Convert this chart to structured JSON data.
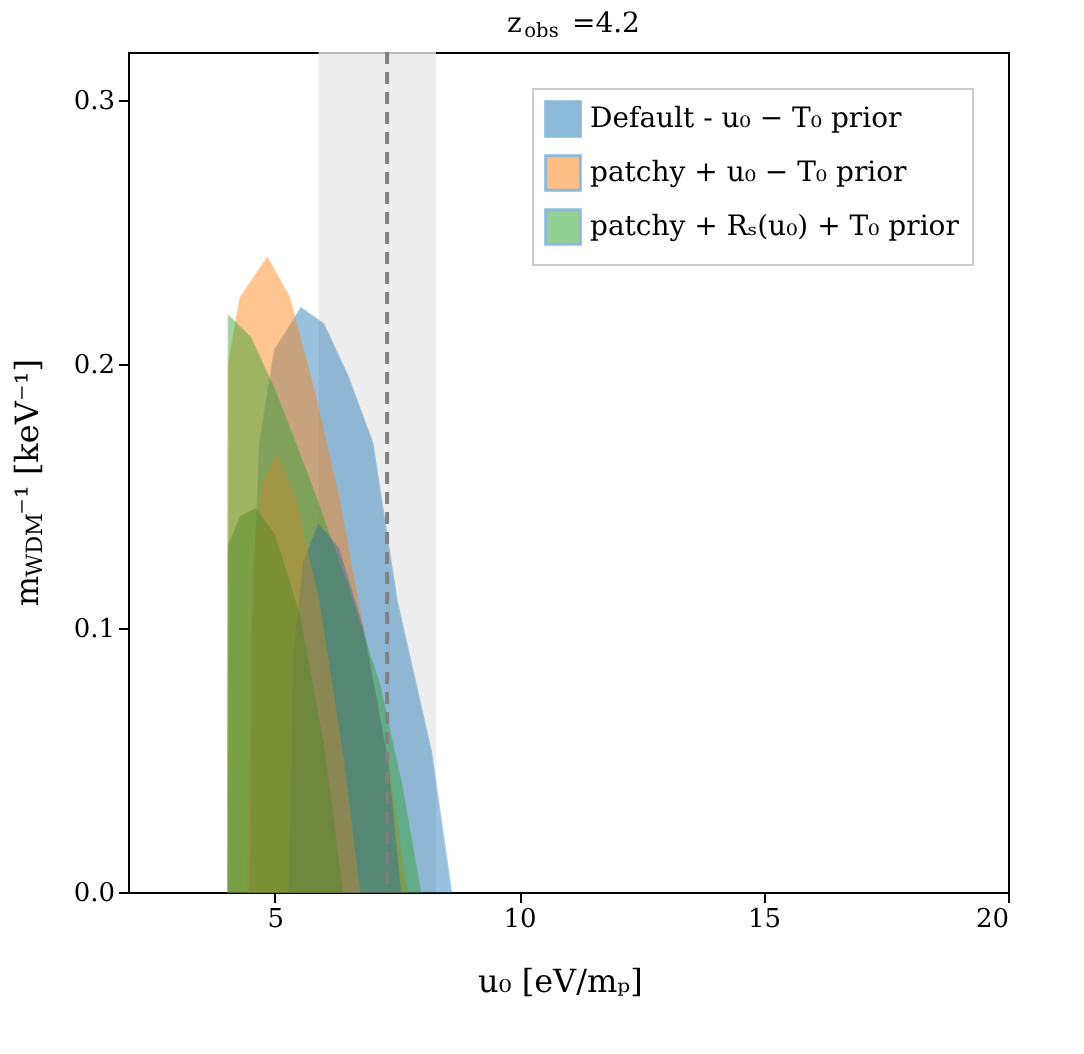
{
  "chart_data": {
    "type": "area",
    "title": "z$_{obs}$ =4.2",
    "xlabel": "u₀ [eV/mₚ]",
    "ylabel": "m$_{WDM}$⁻¹ [keV⁻¹]",
    "xlim": [
      2,
      20
    ],
    "xticks": [
      5,
      10,
      15,
      20
    ],
    "ylim": [
      0,
      0.318
    ],
    "yticks": [
      {
        "value": 0,
        "label": "0.0"
      },
      0.1,
      0.2,
      0.3
    ],
    "grid": false,
    "legend": "top right",
    "series": [
      {
        "name": "Default - u₀ − T₀ prior",
        "color": "#1f77b4",
        "x": [
          4.51,
          4.55,
          4.7,
          5.0,
          5.54,
          6.0,
          6.5,
          7.0,
          7.5,
          8.2,
          8.61
        ],
        "values": [
          0,
          0.1,
          0.17,
          0.205,
          0.221,
          0.215,
          0.195,
          0.17,
          0.11,
          0.053,
          0
        ]
      },
      {
        "name": "patchy + u₀ − T₀ prior",
        "color": "#ff7f0e",
        "x": [
          4.05,
          4.06,
          4.3,
          4.85,
          5.3,
          5.8,
          6.3,
          6.8,
          7.3,
          7.7
        ],
        "values": [
          0,
          0.2,
          0.225,
          0.24,
          0.225,
          0.19,
          0.15,
          0.1,
          0.05,
          0
        ]
      },
      {
        "name": "patchy + Rₛ(u₀) + T₀ prior",
        "color": "#2ca02c",
        "x": [
          4.05,
          4.06,
          4.5,
          5.0,
          5.75,
          6.5,
          7.15,
          7.6,
          7.98
        ],
        "values": [
          0,
          0.218,
          0.21,
          0.19,
          0.154,
          0.115,
          0.078,
          0.04,
          0
        ]
      },
      {
        "color": "#2b6c9c",
        "x": [
          5.3,
          5.4,
          5.6,
          5.9,
          6.3,
          6.8,
          7.3,
          7.57
        ],
        "values": [
          0,
          0.09,
          0.125,
          0.139,
          0.13,
          0.1,
          0.05,
          0
        ]
      },
      {
        "color": "#c8892f",
        "x": [
          4.45,
          4.55,
          4.75,
          5.05,
          5.4,
          5.9,
          6.4,
          6.73
        ],
        "values": [
          0,
          0.12,
          0.155,
          0.165,
          0.15,
          0.11,
          0.05,
          0
        ]
      },
      {
        "color": "#4f8a22",
        "x": [
          4.05,
          4.06,
          4.3,
          4.61,
          5.0,
          5.5,
          6.0,
          6.38
        ],
        "values": [
          0,
          0.131,
          0.142,
          0.145,
          0.135,
          0.105,
          0.055,
          0
        ]
      }
    ],
    "bands": [
      {
        "axis": "x",
        "from": 5.9,
        "to": 8.3,
        "color": "#e8e8e8"
      }
    ],
    "ref_lines": [
      {
        "axis": "x",
        "value": 7.3,
        "color": "#808080",
        "line_style": "dashed"
      }
    ]
  }
}
